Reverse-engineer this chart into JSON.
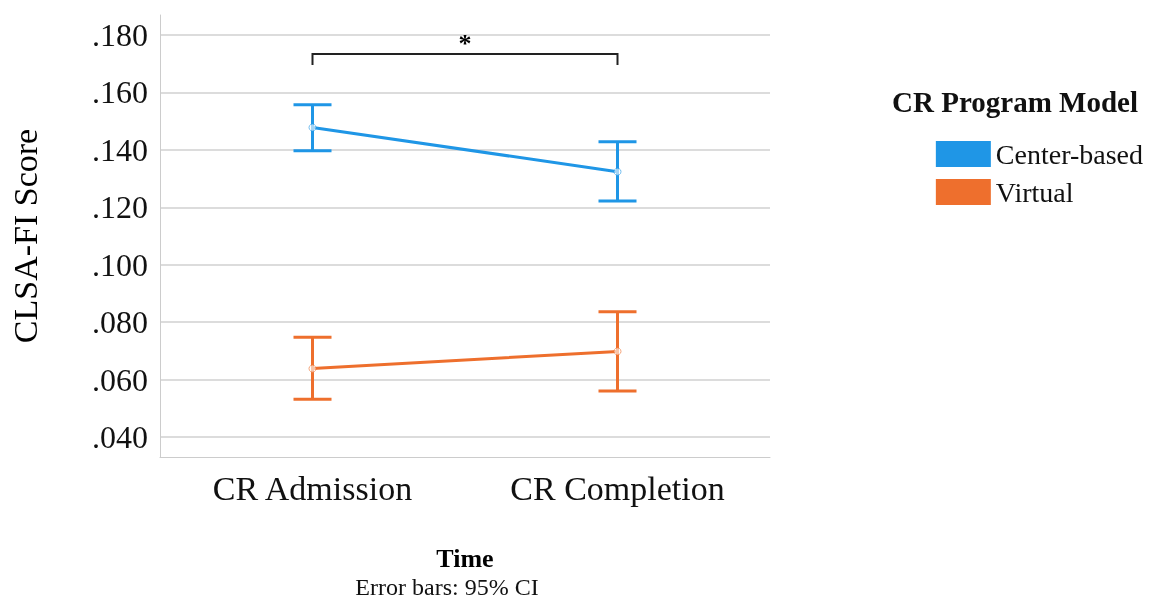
{
  "chart_data": {
    "type": "line",
    "xlabel": "Time",
    "ylabel": "CLSA-FI Score",
    "legend_title": "CR Program Model",
    "legend": "right",
    "categories": [
      "CR Admission",
      "CR Completion"
    ],
    "series": [
      {
        "name": "Center-based",
        "color": "#1f96e6",
        "values": [
          0.1478,
          0.1324
        ],
        "errors": [
          [
            0.1397,
            0.1557
          ],
          [
            0.1222,
            0.1428
          ]
        ]
      },
      {
        "name": "Virtual",
        "color": "#ee6f2d",
        "values": [
          0.0638,
          0.0698
        ],
        "errors": [
          [
            0.0531,
            0.0747
          ],
          [
            0.056,
            0.0836
          ]
        ]
      }
    ],
    "ylim": [
      0.033,
      0.187
    ],
    "yticks": [
      {
        "value": 0.04,
        "label": ".040"
      },
      {
        "value": 0.06,
        "label": ".060"
      },
      {
        "value": 0.08,
        "label": ".080"
      },
      {
        "value": 0.1,
        "label": ".100"
      },
      {
        "value": 0.12,
        "label": ".120"
      },
      {
        "value": 0.14,
        "label": ".140"
      },
      {
        "value": 0.16,
        "label": ".160"
      },
      {
        "value": 0.18,
        "label": ".180"
      }
    ],
    "grid": "y",
    "marker": "circle",
    "line_style": "solid",
    "annotations": [
      "*",
      "Error bars: 95% CI"
    ]
  }
}
